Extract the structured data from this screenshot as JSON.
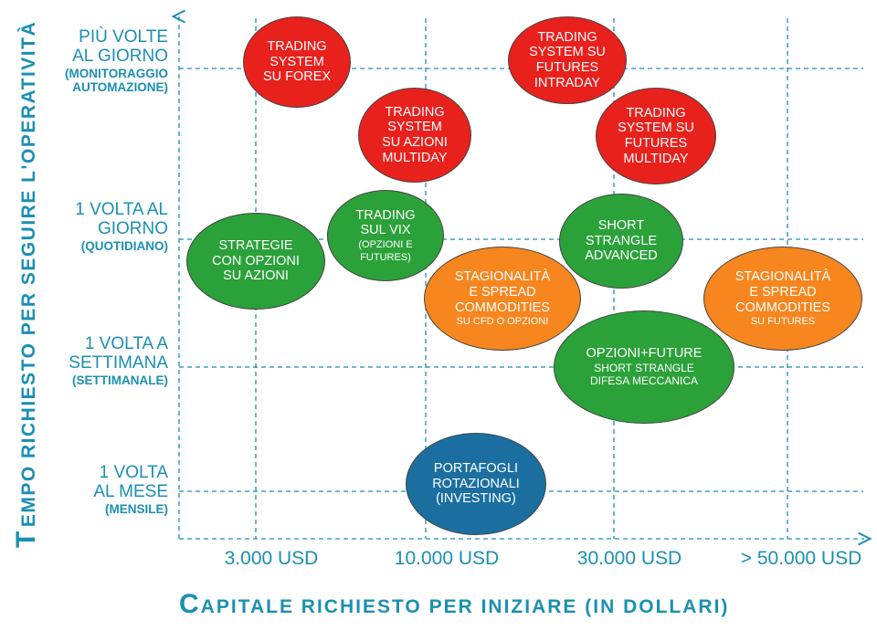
{
  "y_axis_title": {
    "first_letter": "T",
    "rest": "EMPO RICHIESTO PER SEGUIRE  L'OPERATIVITÀ"
  },
  "x_axis_title": {
    "first_letter": "C",
    "rest": "APITALE RICHIESTO PER INIZIARE (IN DOLLARI)"
  },
  "rows": [
    {
      "id": "multi",
      "main": [
        "PIÙ VOLTE",
        "AL GIORNO"
      ],
      "sub": [
        "(MONITORAGGIO",
        "AUTOMAZIONE)"
      ]
    },
    {
      "id": "daily",
      "main": [
        "1 VOLTA AL",
        "GIORNO"
      ],
      "sub": [
        "(QUOTIDIANO)"
      ]
    },
    {
      "id": "weekly",
      "main": [
        "1 VOLTA A",
        "SETTIMANA"
      ],
      "sub": [
        "(SETTIMANALE)"
      ]
    },
    {
      "id": "monthly",
      "main": [
        "1 VOLTA",
        "AL MESE"
      ],
      "sub": [
        "(MENSILE)"
      ]
    }
  ],
  "columns": [
    "3.000 USD",
    "10.000 USD",
    "30.000 USD",
    "> 50.000 USD"
  ],
  "bubbles": [
    {
      "id": "ts-forex",
      "color": "#e8211d",
      "main": [
        "TRADING",
        "SYSTEM",
        "SU FOREX"
      ],
      "sub": []
    },
    {
      "id": "ts-futures-intraday",
      "color": "#e8211d",
      "main": [
        "TRADING",
        "SYSTEM SU",
        "FUTURES",
        "INTRADAY"
      ],
      "sub": []
    },
    {
      "id": "ts-azioni-multiday",
      "color": "#e8211d",
      "main": [
        "TRADING",
        "SYSTEM",
        "SU AZIONI",
        "MULTIDAY"
      ],
      "sub": []
    },
    {
      "id": "ts-futures-multiday",
      "color": "#e8211d",
      "main": [
        "TRADING",
        "SYSTEM SU",
        "FUTURES",
        "MULTIDAY"
      ],
      "sub": []
    },
    {
      "id": "strategie-opzioni",
      "color": "#2ba13a",
      "main": [
        "STRATEGIE",
        "CON OPZIONI",
        "SU AZIONI"
      ],
      "sub": []
    },
    {
      "id": "trading-vix",
      "color": "#2ba13a",
      "main": [
        "TRADING",
        "SUL VIX"
      ],
      "sub": [
        "(OPZIONI E",
        "FUTURES)"
      ]
    },
    {
      "id": "short-strangle",
      "color": "#2ba13a",
      "main": [
        "SHORT",
        "STRANGLE",
        "ADVANCED"
      ],
      "sub": []
    },
    {
      "id": "stag-cfd",
      "color": "#f7861f",
      "main": [
        "STAGIONALITÀ",
        "E SPREAD",
        "COMMODITIES"
      ],
      "sub": [
        "SU CFD O OPZIONI"
      ]
    },
    {
      "id": "stag-futures",
      "color": "#f7861f",
      "main": [
        "STAGIONALITÀ",
        "E SPREAD",
        "COMMODITIES"
      ],
      "sub": [
        "SU FUTURES"
      ]
    },
    {
      "id": "opzioni-future",
      "color": "#2ba13a",
      "main": [
        "OPZIONI+FUTURE"
      ],
      "sub": [
        "SHORT STRANGLE",
        "DIFESA MECCANICA"
      ]
    },
    {
      "id": "portafogli",
      "color": "#1a6fa0",
      "main": [
        "PORTAFOGLI",
        "ROTAZIONALI",
        "(INVESTING)"
      ],
      "sub": []
    }
  ]
}
